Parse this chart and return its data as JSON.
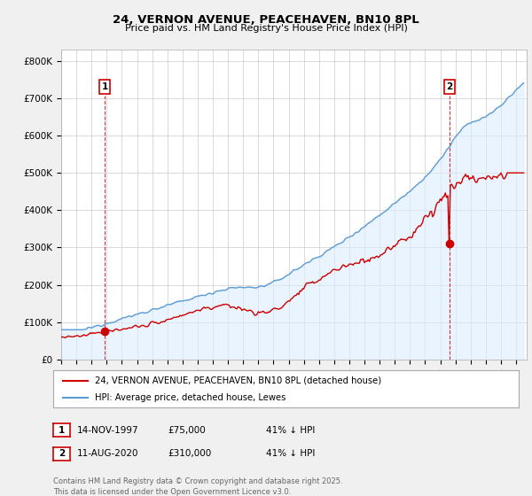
{
  "title": "24, VERNON AVENUE, PEACEHAVEN, BN10 8PL",
  "subtitle": "Price paid vs. HM Land Registry's House Price Index (HPI)",
  "ylabel_ticks": [
    "£0",
    "£100K",
    "£200K",
    "£300K",
    "£400K",
    "£500K",
    "£600K",
    "£700K",
    "£800K"
  ],
  "ytick_values": [
    0,
    100000,
    200000,
    300000,
    400000,
    500000,
    600000,
    700000,
    800000
  ],
  "ylim": [
    0,
    830000
  ],
  "xlim_start": 1995.0,
  "xlim_end": 2025.7,
  "hpi_color": "#5b9bd5",
  "hpi_fill_color": "#ddeeff",
  "price_color": "#cc0000",
  "marker1_x": 1997.87,
  "marker1_y": 75000,
  "marker2_x": 2020.61,
  "marker2_y": 310000,
  "legend_line1": "24, VERNON AVENUE, PEACEHAVEN, BN10 8PL (detached house)",
  "legend_line2": "HPI: Average price, detached house, Lewes",
  "table_row1": [
    "1",
    "14-NOV-1997",
    "£75,000",
    "41% ↓ HPI"
  ],
  "table_row2": [
    "2",
    "11-AUG-2020",
    "£310,000",
    "41% ↓ HPI"
  ],
  "footer": "Contains HM Land Registry data © Crown copyright and database right 2025.\nThis data is licensed under the Open Government Licence v3.0.",
  "background_color": "#f0f0f0",
  "plot_bg_color": "#ffffff",
  "grid_color": "#cccccc"
}
